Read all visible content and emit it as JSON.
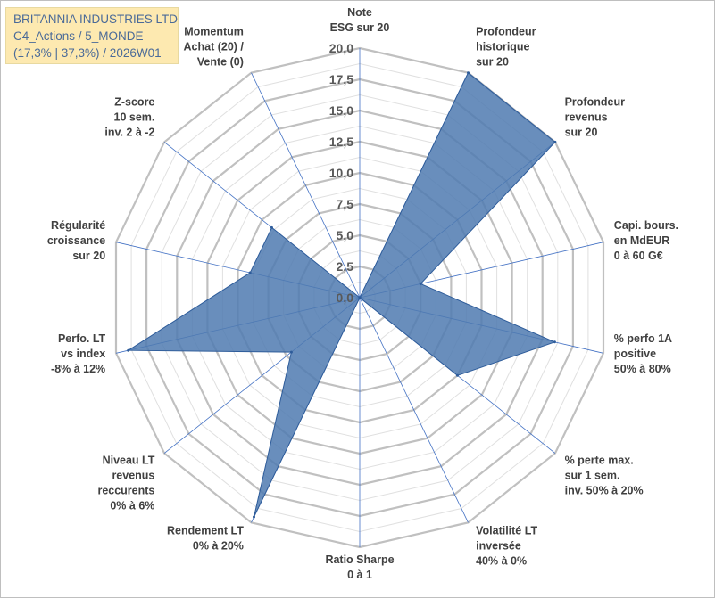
{
  "title_box": {
    "line1": "BRITANNIA INDUSTRIES LTD",
    "line2": "C4_Actions / 5_MONDE",
    "line3": "(17,3% | 37,3%) / 2026W01"
  },
  "chart_data": {
    "type": "radar",
    "rmax": 20,
    "ticks": [
      "0,0",
      "2,5",
      "5,0",
      "7,5",
      "10,0",
      "12,5",
      "15,0",
      "17,5",
      "20,0"
    ],
    "tick_values": [
      0,
      2.5,
      5,
      7.5,
      10,
      12.5,
      15,
      17.5,
      20
    ],
    "axes": [
      {
        "label": [
          "Note",
          "ESG sur 20"
        ],
        "value": 0
      },
      {
        "label": [
          "Profondeur",
          "historique",
          "sur 20"
        ],
        "value": 20
      },
      {
        "label": [
          "Profondeur",
          "revenus",
          "sur 20"
        ],
        "value": 20
      },
      {
        "label": [
          "Capi. bours.",
          "en MdEUR",
          "0 à 60 G€"
        ],
        "value": 5
      },
      {
        "label": [
          "% perfo 1A",
          "positive",
          "50% à 80%"
        ],
        "value": 16
      },
      {
        "label": [
          "% perte max.",
          "sur 1 sem.",
          "inv. 50% à 20%"
        ],
        "value": 10
      },
      {
        "label": [
          "Volatilité LT",
          "inversée",
          "40% à 0%"
        ],
        "value": 0
      },
      {
        "label": [
          "Ratio Sharpe",
          "0 à 1"
        ],
        "value": 0
      },
      {
        "label": [
          "Rendement LT",
          "0% à 20%"
        ],
        "value": 19.5
      },
      {
        "label": [
          "Niveau LT",
          "revenus",
          "reccurents",
          "0% à 6%"
        ],
        "value": 7
      },
      {
        "label": [
          "Perfo. LT",
          "vs index",
          "-8% à 12%"
        ],
        "value": 19
      },
      {
        "label": [
          "Régularité",
          "croissance",
          "sur 20"
        ],
        "value": 9
      },
      {
        "label": [
          "Z-score",
          "10 sem.",
          "inv. 2 à -2"
        ],
        "value": 9
      },
      {
        "label": [
          "Momentum",
          "Achat (20) /",
          "Vente (0)"
        ],
        "value": 0
      }
    ],
    "colors": {
      "fill": "#4f7ab0",
      "stroke": "#2e5c9a",
      "grid_major": "#c0c0c0",
      "grid_minor": "#e0e0e0",
      "spoke": "#4472c4"
    }
  }
}
